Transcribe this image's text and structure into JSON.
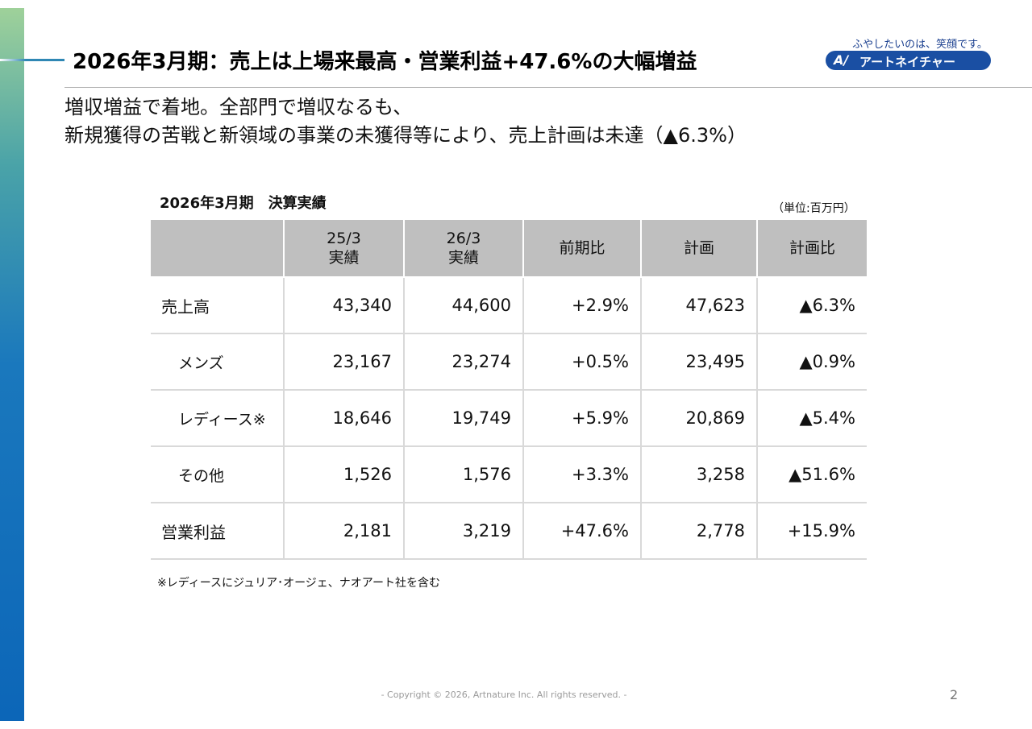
{
  "slide": {
    "title": "2026年3月期：売上は上場来最高・営業利益+47.6%の大幅増益",
    "subtitle_lines": [
      "増収増益で着地。全部門で増収なるも、",
      "新規獲得の苦戦と新領域の事業の未獲得等により、売上計画は未達（▲6.3%）"
    ]
  },
  "logo": {
    "tagline": "ふやしたいのは、笑顔です。",
    "mark": "A/",
    "name": "アートネイチャー",
    "color": "#1a4fa3"
  },
  "table": {
    "caption": "2026年3月期　決算実績",
    "unit": "（単位:百万円）",
    "headers": [
      {
        "line1": "",
        "line2": ""
      },
      {
        "line1": "25/3",
        "line2": "実績"
      },
      {
        "line1": "26/3",
        "line2": "実績"
      },
      {
        "line1": "前期比",
        "line2": ""
      },
      {
        "line1": "計画",
        "line2": ""
      },
      {
        "line1": "計画比",
        "line2": ""
      }
    ],
    "rows": [
      {
        "label": "売上高",
        "prev": "43,340",
        "curr": "44,600",
        "yoy": "+2.9%",
        "plan": "47,623",
        "vs_plan": "▲6.3%"
      },
      {
        "label": "メンズ",
        "prev": "23,167",
        "curr": "23,274",
        "yoy": "+0.5%",
        "plan": "23,495",
        "vs_plan": "▲0.9%"
      },
      {
        "label": "レディース※",
        "prev": "18,646",
        "curr": "19,749",
        "yoy": "+5.9%",
        "plan": "20,869",
        "vs_plan": "▲5.4%"
      },
      {
        "label": "その他",
        "prev": "1,526",
        "curr": "1,576",
        "yoy": "+3.3%",
        "plan": "3,258",
        "vs_plan": "▲51.6%"
      },
      {
        "label": "営業利益",
        "prev": "2,181",
        "curr": "3,219",
        "yoy": "+47.6%",
        "plan": "2,778",
        "vs_plan": "+15.9%"
      }
    ],
    "footnote": "※レディースにジュリア･オージェ、ナオアート社を含む",
    "header_bg": "#bfbfbf"
  },
  "footer": {
    "copyright": "- Copyright © 2026, Artnature Inc. All rights reserved. -",
    "page_number": "2"
  },
  "colors": {
    "left_bar_top": "#9fd19a",
    "left_bar_bottom": "#0c66b8"
  }
}
